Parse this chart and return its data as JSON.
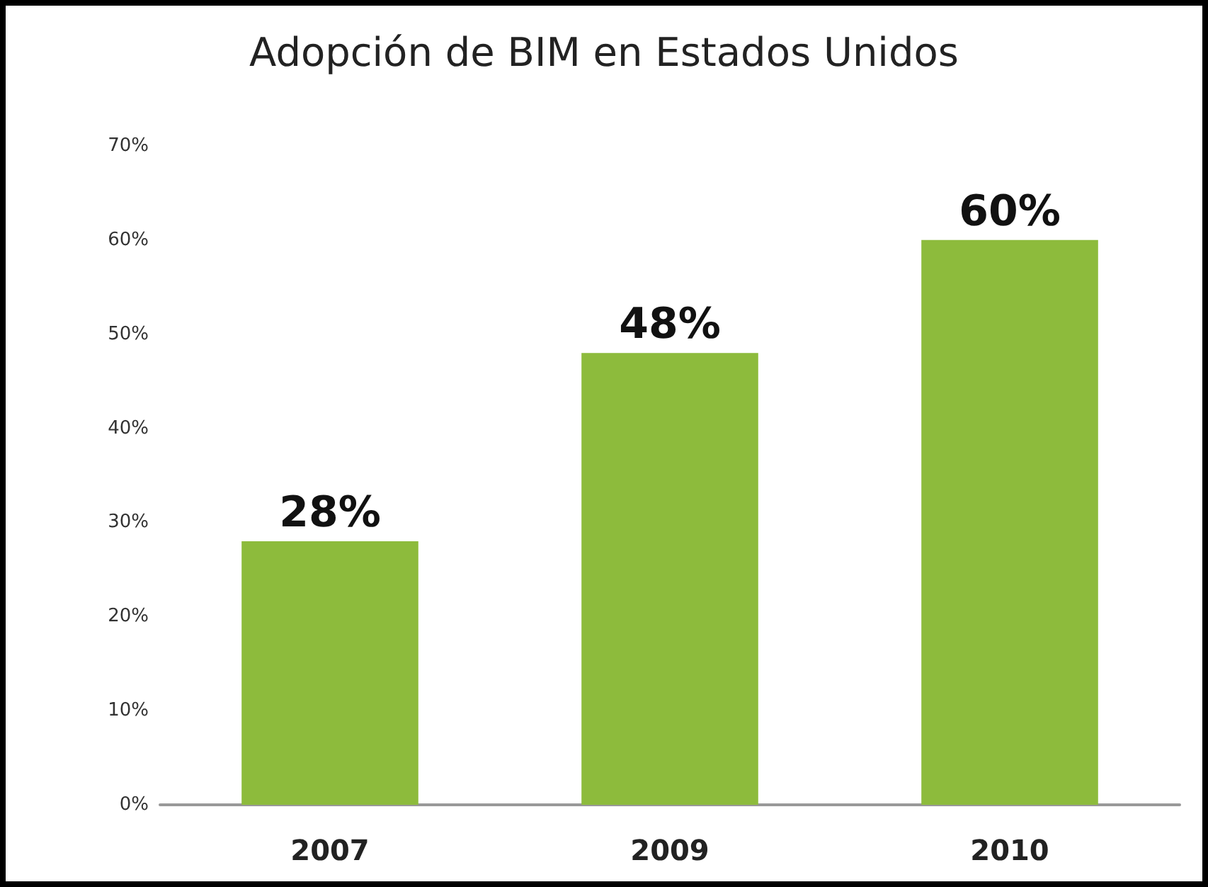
{
  "chart_data": {
    "type": "bar",
    "title": "Adopción de BIM en Estados Unidos",
    "categories": [
      "2007",
      "2009",
      "2010"
    ],
    "values": [
      28,
      48,
      60
    ],
    "color": "#8dbb3c",
    "value_labels": [
      "28%",
      "48%",
      "60%"
    ],
    "ylim": [
      0,
      70
    ],
    "yticks": [
      {
        "value": 0,
        "label": "0%"
      },
      {
        "value": 10,
        "label": "10%"
      },
      {
        "value": 20,
        "label": "20%"
      },
      {
        "value": 30,
        "label": "30%"
      },
      {
        "value": 40,
        "label": "40%"
      },
      {
        "value": 50,
        "label": "50%"
      },
      {
        "value": 60,
        "label": "60%"
      },
      {
        "value": 70,
        "label": "70%"
      }
    ],
    "grid": false
  }
}
